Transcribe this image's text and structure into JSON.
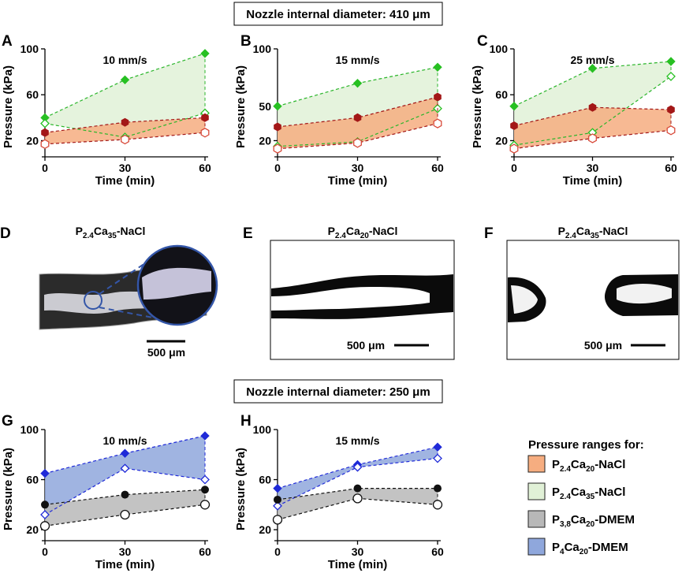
{
  "header_top": "Nozzle internal diameter: 410 μm",
  "header_bottom": "Nozzle internal diameter: 250 μm",
  "axis": {
    "xlabel": "Time (min)",
    "ylabel": "Pressure (kPa)"
  },
  "panels": [
    {
      "letter": "A",
      "speed": "10 mm/s",
      "yticks": [
        20,
        60,
        100
      ],
      "xticks": [
        0,
        30,
        60
      ],
      "ylim": [
        10,
        100
      ],
      "series": [
        {
          "key": "p24ca35",
          "filled": [
            40,
            73,
            96
          ],
          "open": [
            35,
            23,
            44
          ]
        },
        {
          "key": "p24ca20",
          "filled": [
            27,
            36,
            40
          ],
          "open": [
            17,
            21,
            27
          ]
        }
      ]
    },
    {
      "letter": "B",
      "speed": "15 mm/s",
      "yticks": [
        20,
        50,
        100
      ],
      "xticks": [
        0,
        30,
        60
      ],
      "ylim": [
        10,
        100
      ],
      "series": [
        {
          "key": "p24ca35",
          "filled": [
            50,
            70,
            84
          ],
          "open": [
            15,
            19,
            48
          ]
        },
        {
          "key": "p24ca20",
          "filled": [
            32,
            40,
            58
          ],
          "open": [
            13,
            18,
            35
          ]
        }
      ]
    },
    {
      "letter": "C",
      "speed": "25 mm/s",
      "yticks": [
        20,
        60,
        100
      ],
      "xticks": [
        0,
        30,
        60
      ],
      "ylim": [
        10,
        100
      ],
      "series": [
        {
          "key": "p24ca35",
          "filled": [
            50,
            83,
            89
          ],
          "open": [
            16,
            27,
            76
          ]
        },
        {
          "key": "p24ca20",
          "filled": [
            33,
            49,
            47
          ],
          "open": [
            13,
            22,
            29
          ]
        }
      ]
    },
    {
      "letter": "G",
      "speed": "10 mm/s",
      "yticks": [
        20,
        60,
        100
      ],
      "xticks": [
        0,
        30,
        60
      ],
      "ylim": [
        15,
        100
      ],
      "series": [
        {
          "key": "p4ca20",
          "filled": [
            65,
            81,
            95
          ],
          "open": [
            32,
            69,
            60
          ]
        },
        {
          "key": "p38ca20",
          "filled": [
            40,
            48,
            52
          ],
          "open": [
            23,
            32,
            40
          ]
        }
      ]
    },
    {
      "letter": "H",
      "speed": "15 mm/s",
      "yticks": [
        20,
        60,
        100
      ],
      "xticks": [
        0,
        30,
        60
      ],
      "ylim": [
        15,
        100
      ],
      "series": [
        {
          "key": "p4ca20",
          "filled": [
            53,
            72,
            86
          ],
          "open": [
            39,
            70,
            77
          ]
        },
        {
          "key": "p38ca20",
          "filled": [
            44,
            53,
            53
          ],
          "open": [
            28,
            45,
            40
          ]
        }
      ]
    }
  ],
  "images": [
    {
      "letter": "D",
      "sample": {
        "pre": "P",
        "s1": "2.4",
        "mid": "Ca",
        "s2": "35",
        "post": "-NaCl"
      },
      "scale": "500 μm"
    },
    {
      "letter": "E",
      "sample": {
        "pre": "P",
        "s1": "2.4",
        "mid": "Ca",
        "s2": "20",
        "post": "-NaCl"
      },
      "scale": "500 μm"
    },
    {
      "letter": "F",
      "sample": {
        "pre": "P",
        "s1": "2.4",
        "mid": "Ca",
        "s2": "35",
        "post": "-NaCl"
      },
      "scale": "500 μm"
    }
  ],
  "legend": {
    "title": "Pressure ranges for:",
    "items": [
      {
        "key": "p24ca20",
        "pre": "P",
        "s1": "2.4",
        "mid": "Ca",
        "s2": "20",
        "post": "-NaCl"
      },
      {
        "key": "p24ca35",
        "pre": "P",
        "s1": "2.4",
        "mid": "Ca",
        "s2": "35",
        "post": "-NaCl"
      },
      {
        "key": "p38ca20",
        "pre": "P",
        "s1": "3,8",
        "mid": "Ca",
        "s2": "20",
        "post": "-DMEM"
      },
      {
        "key": "p4ca20",
        "pre": "P",
        "s1": "4",
        "mid": "Ca",
        "s2": "20",
        "post": "-DMEM"
      }
    ]
  },
  "colors": {
    "p24ca20": {
      "fill": "#f6ad80",
      "line": "#a31717",
      "marker": "#a31717",
      "open": "#d84a3a"
    },
    "p24ca35": {
      "fill": "#e1f1d7",
      "line": "#2ab52a",
      "marker": "#27c022",
      "open": "#27c022"
    },
    "p38ca20": {
      "fill": "#b8b8b8",
      "line": "#111111",
      "marker": "#111111",
      "open": "#111111"
    },
    "p4ca20": {
      "fill": "#8fa7dc",
      "line": "#1f2ad8",
      "marker": "#1f2ad8",
      "open": "#1f2ad8"
    }
  },
  "chart_data": [
    {
      "panel": "A",
      "type": "line",
      "title": "10 mm/s",
      "xlabel": "Time (min)",
      "ylabel": "Pressure (kPa)",
      "x": [
        0,
        30,
        60
      ],
      "ylim": [
        10,
        100
      ],
      "series": [
        {
          "name": "P2.4Ca35-NaCl max",
          "values": [
            40,
            73,
            96
          ]
        },
        {
          "name": "P2.4Ca35-NaCl min",
          "values": [
            35,
            23,
            44
          ]
        },
        {
          "name": "P2.4Ca20-NaCl max",
          "values": [
            27,
            36,
            40
          ]
        },
        {
          "name": "P2.4Ca20-NaCl min",
          "values": [
            17,
            21,
            27
          ]
        }
      ]
    },
    {
      "panel": "B",
      "type": "line",
      "title": "15 mm/s",
      "xlabel": "Time (min)",
      "ylabel": "Pressure (kPa)",
      "x": [
        0,
        30,
        60
      ],
      "ylim": [
        10,
        100
      ],
      "series": [
        {
          "name": "P2.4Ca35-NaCl max",
          "values": [
            50,
            70,
            84
          ]
        },
        {
          "name": "P2.4Ca35-NaCl min",
          "values": [
            15,
            19,
            48
          ]
        },
        {
          "name": "P2.4Ca20-NaCl max",
          "values": [
            32,
            40,
            58
          ]
        },
        {
          "name": "P2.4Ca20-NaCl min",
          "values": [
            13,
            18,
            35
          ]
        }
      ]
    },
    {
      "panel": "C",
      "type": "line",
      "title": "25 mm/s",
      "xlabel": "Time (min)",
      "ylabel": "Pressure (kPa)",
      "x": [
        0,
        30,
        60
      ],
      "ylim": [
        10,
        100
      ],
      "series": [
        {
          "name": "P2.4Ca35-NaCl max",
          "values": [
            50,
            83,
            89
          ]
        },
        {
          "name": "P2.4Ca35-NaCl min",
          "values": [
            16,
            27,
            76
          ]
        },
        {
          "name": "P2.4Ca20-NaCl max",
          "values": [
            33,
            49,
            47
          ]
        },
        {
          "name": "P2.4Ca20-NaCl min",
          "values": [
            13,
            22,
            29
          ]
        }
      ]
    },
    {
      "panel": "G",
      "type": "line",
      "title": "10 mm/s",
      "xlabel": "Time (min)",
      "ylabel": "Pressure (kPa)",
      "x": [
        0,
        30,
        60
      ],
      "ylim": [
        15,
        100
      ],
      "series": [
        {
          "name": "P4Ca20-DMEM max",
          "values": [
            65,
            81,
            95
          ]
        },
        {
          "name": "P4Ca20-DMEM min",
          "values": [
            32,
            69,
            60
          ]
        },
        {
          "name": "P3,8Ca20-DMEM max",
          "values": [
            40,
            48,
            52
          ]
        },
        {
          "name": "P3,8Ca20-DMEM min",
          "values": [
            23,
            32,
            40
          ]
        }
      ]
    },
    {
      "panel": "H",
      "type": "line",
      "title": "15 mm/s",
      "xlabel": "Time (min)",
      "ylabel": "Pressure (kPa)",
      "x": [
        0,
        30,
        60
      ],
      "ylim": [
        15,
        100
      ],
      "series": [
        {
          "name": "P4Ca20-DMEM max",
          "values": [
            53,
            72,
            86
          ]
        },
        {
          "name": "P4Ca20-DMEM min",
          "values": [
            39,
            70,
            77
          ]
        },
        {
          "name": "P3,8Ca20-DMEM max",
          "values": [
            44,
            53,
            53
          ]
        },
        {
          "name": "P3,8Ca20-DMEM min",
          "values": [
            28,
            45,
            40
          ]
        }
      ]
    }
  ]
}
